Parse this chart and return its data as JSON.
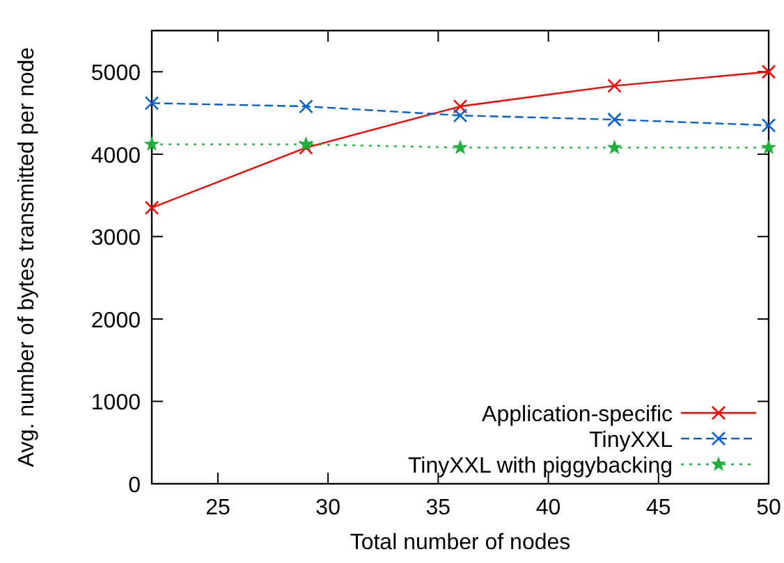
{
  "chart_data": {
    "type": "line",
    "xlabel": "Total number of nodes",
    "ylabel": "Avg. number of bytes transmitted per node",
    "x": [
      22,
      29,
      36,
      43,
      50
    ],
    "xlim": [
      22,
      50
    ],
    "xticks": [
      25,
      30,
      35,
      40,
      45,
      50
    ],
    "ylim": [
      0,
      5500
    ],
    "yticks": [
      0,
      1000,
      2000,
      3000,
      4000,
      5000
    ],
    "grid": false,
    "legend": "bottom right",
    "series": [
      {
        "name": "Application-specific",
        "color": "#ff0000",
        "values": [
          3350,
          4080,
          4580,
          4830,
          5000
        ],
        "marker": "cross",
        "line_style": "solid"
      },
      {
        "name": "TinyXXL",
        "color": "#0060d0",
        "values": [
          4620,
          4580,
          4470,
          4420,
          4350
        ],
        "marker": "cross",
        "line_style": "dashed"
      },
      {
        "name": "TinyXXL with piggybacking",
        "color": "#20b040",
        "values": [
          4120,
          4120,
          4080,
          4080,
          4080
        ],
        "marker": "star",
        "line_style": "dotted"
      }
    ]
  }
}
